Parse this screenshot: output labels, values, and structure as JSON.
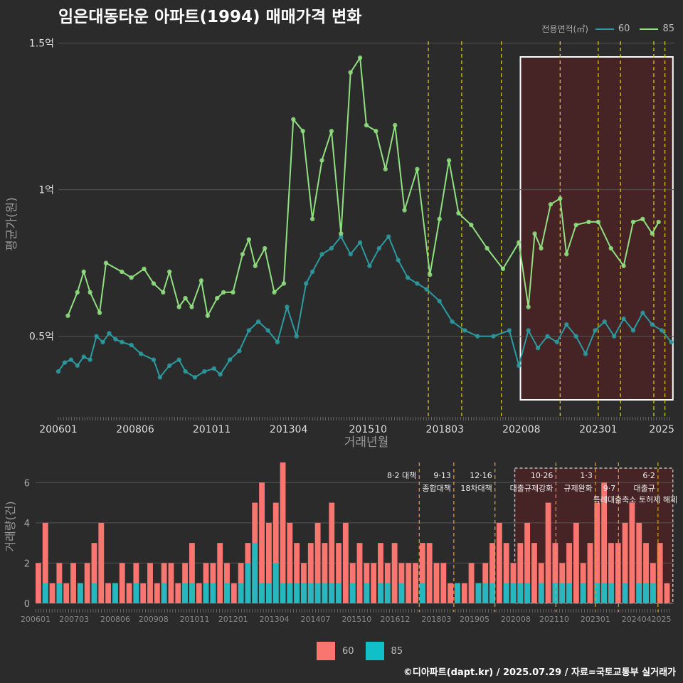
{
  "title": "임은대동타운 아파트(1994) 매매가격 변화",
  "legend_title": "전용면적(㎡)",
  "series_colors": {
    "60": "#2a9ba0",
    "85": "#90e080"
  },
  "bar_colors": {
    "60": "#f87570",
    "85": "#10c0c8"
  },
  "footer": "©디아파트(dapt.kr) / 2025.07.29 / 자료=국토교통부 실거래가",
  "chart_data": [
    {
      "type": "line",
      "xlabel": "거래년월",
      "ylabel": "평균가(원)",
      "ylim": [
        0.22,
        1.55
      ],
      "yticks": [
        0.5,
        1,
        1.5
      ],
      "ytick_labels": [
        "0.5억",
        "1억",
        "1.5억"
      ],
      "xtick_labels": [
        "200601",
        "200806",
        "201011",
        "201304",
        "201510",
        "201803",
        "202008",
        "202301",
        "2025"
      ],
      "xtick_values": [
        2006.0,
        2008.42,
        2010.83,
        2013.25,
        2015.75,
        2018.17,
        2020.58,
        2023.0,
        2025.0
      ],
      "xlim": [
        2006.0,
        2025.4
      ],
      "series": [
        {
          "name": "60",
          "x": [
            2006.0,
            2006.2,
            2006.4,
            2006.6,
            2006.8,
            2007.0,
            2007.2,
            2007.4,
            2007.6,
            2007.8,
            2008.0,
            2008.3,
            2008.6,
            2009.0,
            2009.2,
            2009.5,
            2009.8,
            2010.0,
            2010.3,
            2010.6,
            2010.9,
            2011.1,
            2011.4,
            2011.7,
            2012.0,
            2012.3,
            2012.6,
            2012.9,
            2013.2,
            2013.5,
            2013.8,
            2014.0,
            2014.3,
            2014.6,
            2014.9,
            2015.2,
            2015.5,
            2015.8,
            2016.1,
            2016.4,
            2016.7,
            2017.0,
            2017.3,
            2017.6,
            2018.0,
            2018.4,
            2018.8,
            2019.2,
            2019.7,
            2020.2,
            2020.5,
            2020.8,
            2021.1,
            2021.4,
            2021.7,
            2022.0,
            2022.3,
            2022.6,
            2022.9,
            2023.2,
            2023.5,
            2023.8,
            2024.1,
            2024.4,
            2024.7,
            2025.0,
            2025.3
          ],
          "y": [
            0.38,
            0.41,
            0.42,
            0.4,
            0.43,
            0.42,
            0.5,
            0.48,
            0.51,
            0.49,
            0.48,
            0.47,
            0.44,
            0.42,
            0.36,
            0.4,
            0.42,
            0.38,
            0.36,
            0.38,
            0.39,
            0.37,
            0.42,
            0.45,
            0.52,
            0.55,
            0.52,
            0.48,
            0.6,
            0.5,
            0.68,
            0.72,
            0.78,
            0.8,
            0.84,
            0.78,
            0.82,
            0.74,
            0.8,
            0.84,
            0.76,
            0.7,
            0.68,
            0.66,
            0.62,
            0.55,
            0.52,
            0.5,
            0.5,
            0.52,
            0.4,
            0.52,
            0.46,
            0.5,
            0.48,
            0.54,
            0.5,
            0.44,
            0.52,
            0.55,
            0.5,
            0.56,
            0.52,
            0.58,
            0.54,
            0.52,
            0.48
          ]
        },
        {
          "name": "85",
          "x": [
            2006.3,
            2006.6,
            2006.8,
            2007.0,
            2007.3,
            2007.5,
            2008.0,
            2008.3,
            2008.7,
            2009.0,
            2009.3,
            2009.5,
            2009.8,
            2010.0,
            2010.2,
            2010.5,
            2010.7,
            2011.0,
            2011.2,
            2011.5,
            2011.8,
            2012.0,
            2012.2,
            2012.5,
            2012.8,
            2013.1,
            2013.4,
            2013.7,
            2014.0,
            2014.3,
            2014.6,
            2014.9,
            2015.2,
            2015.5,
            2015.7,
            2016.0,
            2016.3,
            2016.6,
            2016.9,
            2017.3,
            2017.7,
            2018.0,
            2018.3,
            2018.6,
            2019.0,
            2019.5,
            2020.0,
            2020.5,
            2020.8,
            2021.0,
            2021.2,
            2021.5,
            2021.8,
            2022.0,
            2022.3,
            2022.7,
            2023.0,
            2023.4,
            2023.8,
            2024.1,
            2024.4,
            2024.7,
            2024.9
          ],
          "y": [
            0.57,
            0.65,
            0.72,
            0.65,
            0.58,
            0.75,
            0.72,
            0.7,
            0.73,
            0.68,
            0.65,
            0.72,
            0.6,
            0.63,
            0.6,
            0.69,
            0.57,
            0.63,
            0.65,
            0.65,
            0.78,
            0.83,
            0.74,
            0.8,
            0.65,
            0.68,
            1.24,
            1.2,
            0.9,
            1.1,
            1.2,
            0.85,
            1.4,
            1.45,
            1.22,
            1.2,
            1.07,
            1.22,
            0.93,
            1.07,
            0.71,
            0.9,
            1.1,
            0.92,
            0.88,
            0.8,
            0.73,
            0.82,
            0.6,
            0.85,
            0.8,
            0.95,
            0.97,
            0.78,
            0.88,
            0.89,
            0.89,
            0.8,
            0.74,
            0.89,
            0.9,
            0.85,
            0.89
          ]
        }
      ],
      "vlines": [
        2017.65,
        2018.7,
        2019.95,
        2021.8,
        2023.0,
        2023.7,
        2024.75,
        2025.1
      ],
      "highlight": [
        2020.55,
        2025.35
      ]
    },
    {
      "type": "bar",
      "xlabel": "",
      "ylabel": "거래량(건)",
      "ylim": [
        0,
        7
      ],
      "yticks": [
        0,
        2,
        4,
        6
      ],
      "xtick_labels": [
        "200601",
        "200703",
        "200806",
        "200908",
        "201011",
        "201201",
        "201304",
        "201407",
        "201510",
        "201612",
        "201803",
        "201905",
        "202008",
        "202110",
        "202301",
        "202404",
        "2025"
      ],
      "xtick_values": [
        2006.0,
        2007.17,
        2008.42,
        2009.58,
        2010.83,
        2012.0,
        2013.25,
        2014.5,
        2015.75,
        2016.92,
        2018.17,
        2019.33,
        2020.58,
        2021.75,
        2023.0,
        2024.25,
        2025.0
      ],
      "xlim": [
        2006.0,
        2025.4
      ],
      "series": [
        {
          "name": "60",
          "counts": [
            2,
            4,
            1,
            2,
            1,
            2,
            1,
            2,
            3,
            4,
            1,
            1,
            2,
            1,
            2,
            1,
            2,
            1,
            2,
            2,
            1,
            2,
            3,
            1,
            2,
            2,
            3,
            2,
            1,
            2,
            3,
            5,
            6,
            4,
            5,
            7,
            4,
            3,
            2,
            3,
            4,
            3,
            5,
            3,
            4,
            2,
            3,
            2,
            2,
            3,
            2,
            3,
            2,
            2,
            2,
            3,
            3,
            2,
            2,
            1,
            1,
            1,
            2,
            1,
            2,
            3,
            4,
            3,
            2,
            3,
            4,
            3,
            2,
            5,
            3,
            2,
            3,
            4,
            2,
            3,
            5,
            6,
            3,
            3,
            4,
            5,
            4,
            3,
            2,
            3,
            1
          ]
        },
        {
          "name": "85",
          "counts": [
            0,
            1,
            0,
            1,
            0,
            0,
            1,
            0,
            1,
            0,
            0,
            1,
            0,
            0,
            1,
            0,
            0,
            0,
            1,
            0,
            0,
            1,
            1,
            0,
            1,
            1,
            0,
            1,
            0,
            1,
            2,
            3,
            1,
            1,
            2,
            1,
            1,
            1,
            1,
            1,
            1,
            1,
            1,
            1,
            0,
            1,
            0,
            1,
            0,
            1,
            1,
            0,
            1,
            0,
            0,
            1,
            0,
            0,
            0,
            0,
            1,
            0,
            0,
            1,
            1,
            1,
            0,
            1,
            1,
            1,
            1,
            0,
            1,
            0,
            1,
            1,
            1,
            0,
            1,
            0,
            1,
            1,
            1,
            0,
            1,
            0,
            1,
            1,
            1,
            0,
            0
          ]
        }
      ],
      "policy_labels": [
        {
          "x": 2017.65,
          "line1": "8·2 대책",
          "line2": ""
        },
        {
          "x": 2018.7,
          "line1": "9·13",
          "line2": "종합대책"
        },
        {
          "x": 2019.95,
          "line1": "12·16",
          "line2": "18차대책"
        },
        {
          "x": 2021.8,
          "line1": "10·26",
          "line2": "대출규제강화"
        },
        {
          "x": 2023.0,
          "line1": "1·3",
          "line2": "규제완화"
        },
        {
          "x": 2023.7,
          "line1": "",
          "line2": "9·7"
        },
        {
          "x": 2024.9,
          "line1": "6·2",
          "line2": "대출규"
        }
      ],
      "policy_note": "특례대출축소 토허제 해제",
      "highlight": [
        2020.55,
        2025.35
      ]
    }
  ]
}
